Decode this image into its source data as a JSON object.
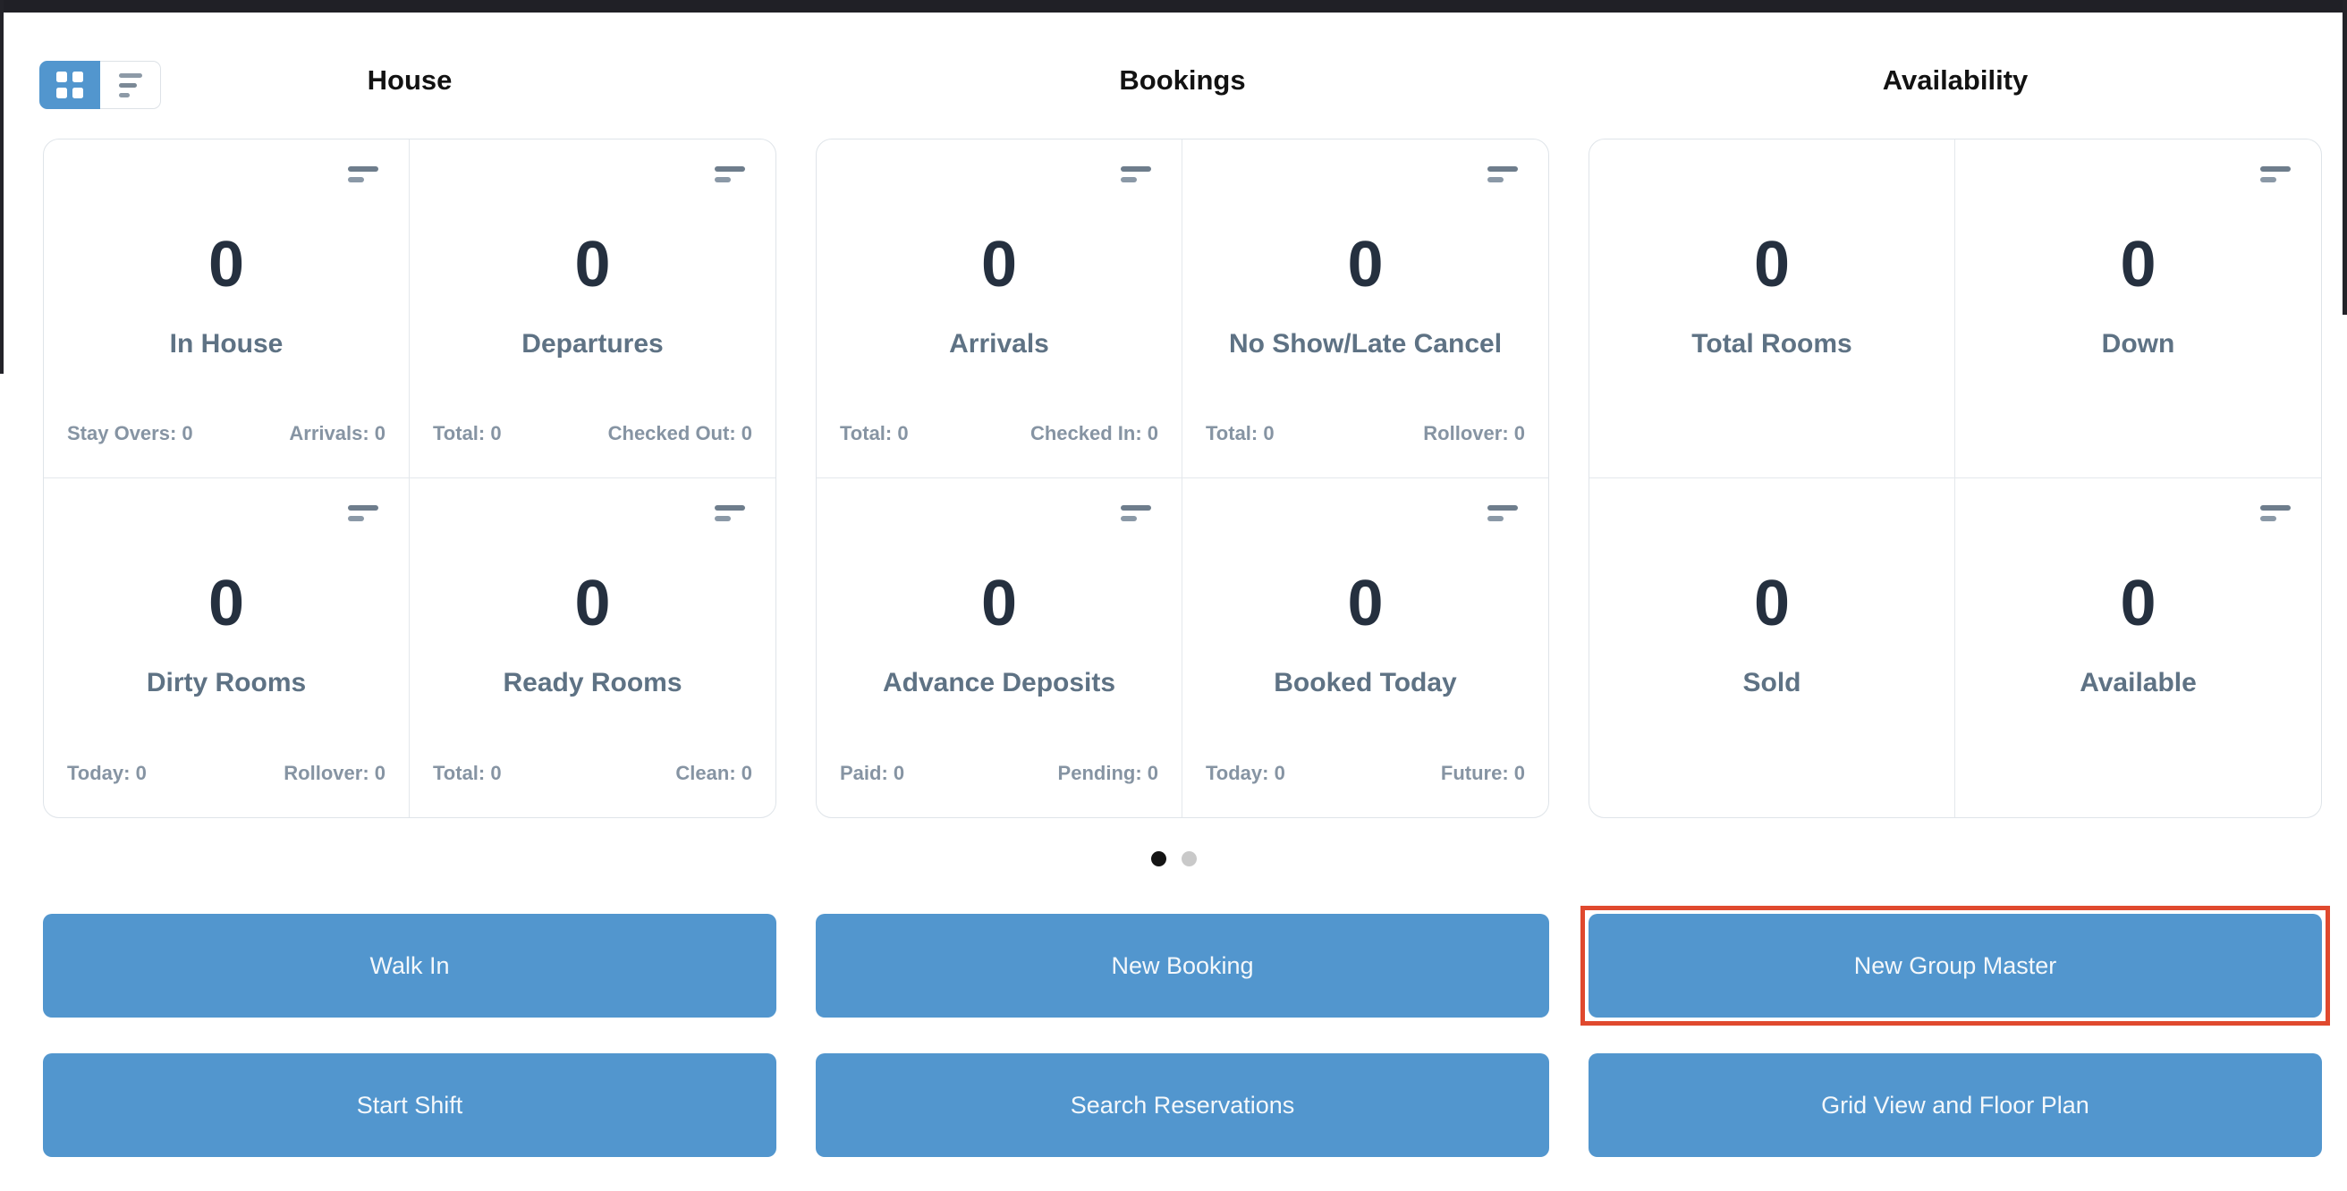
{
  "colors": {
    "accent_blue": "#5296CE",
    "highlight_red": "#E0492E",
    "number_color": "#25303F",
    "label_color": "#5E7284",
    "substat_color": "#8694A3",
    "dot_active": "#141414",
    "dot_inactive": "#C9C9C9"
  },
  "view_toggle": {
    "buttons": [
      {
        "icon": "grid-view-icon",
        "active": true
      },
      {
        "icon": "list-view-icon",
        "active": false
      }
    ]
  },
  "sections": [
    {
      "title": "House",
      "cards": [
        {
          "value": "0",
          "label": "In House",
          "menu_icon": true,
          "stats": {
            "left": "Stay Overs: 0",
            "right": "Arrivals: 0"
          }
        },
        {
          "value": "0",
          "label": "Departures",
          "menu_icon": true,
          "stats": {
            "left": "Total: 0",
            "right": "Checked Out: 0"
          }
        },
        {
          "value": "0",
          "label": "Dirty Rooms",
          "menu_icon": true,
          "stats": {
            "left": "Today: 0",
            "right": "Rollover: 0"
          }
        },
        {
          "value": "0",
          "label": "Ready Rooms",
          "menu_icon": true,
          "stats": {
            "left": "Total: 0",
            "right": "Clean: 0"
          }
        }
      ],
      "buttons": [
        {
          "label": "Walk In",
          "highlighted": false
        },
        {
          "label": "Start Shift",
          "highlighted": false
        }
      ]
    },
    {
      "title": "Bookings",
      "cards": [
        {
          "value": "0",
          "label": "Arrivals",
          "menu_icon": true,
          "stats": {
            "left": "Total: 0",
            "right": "Checked In: 0"
          }
        },
        {
          "value": "0",
          "label": "No Show/Late Cancel",
          "menu_icon": true,
          "stats": {
            "left": "Total: 0",
            "right": "Rollover: 0"
          }
        },
        {
          "value": "0",
          "label": "Advance Deposits",
          "menu_icon": true,
          "stats": {
            "left": "Paid: 0",
            "right": "Pending: 0"
          }
        },
        {
          "value": "0",
          "label": "Booked Today",
          "menu_icon": true,
          "stats": {
            "left": "Today: 0",
            "right": "Future: 0"
          }
        }
      ],
      "buttons": [
        {
          "label": "New Booking",
          "highlighted": false
        },
        {
          "label": "Search Reservations",
          "highlighted": false
        }
      ]
    },
    {
      "title": "Availability",
      "cards": [
        {
          "value": "0",
          "label": "Total Rooms",
          "menu_icon": false
        },
        {
          "value": "0",
          "label": "Down",
          "menu_icon": true
        },
        {
          "value": "0",
          "label": "Sold",
          "menu_icon": false
        },
        {
          "value": "0",
          "label": "Available",
          "menu_icon": true
        }
      ],
      "buttons": [
        {
          "label": "New Group Master",
          "highlighted": true
        },
        {
          "label": "Grid View and Floor Plan",
          "highlighted": false
        }
      ]
    }
  ],
  "carousel": {
    "total_pages": 2,
    "active_page": 1
  }
}
